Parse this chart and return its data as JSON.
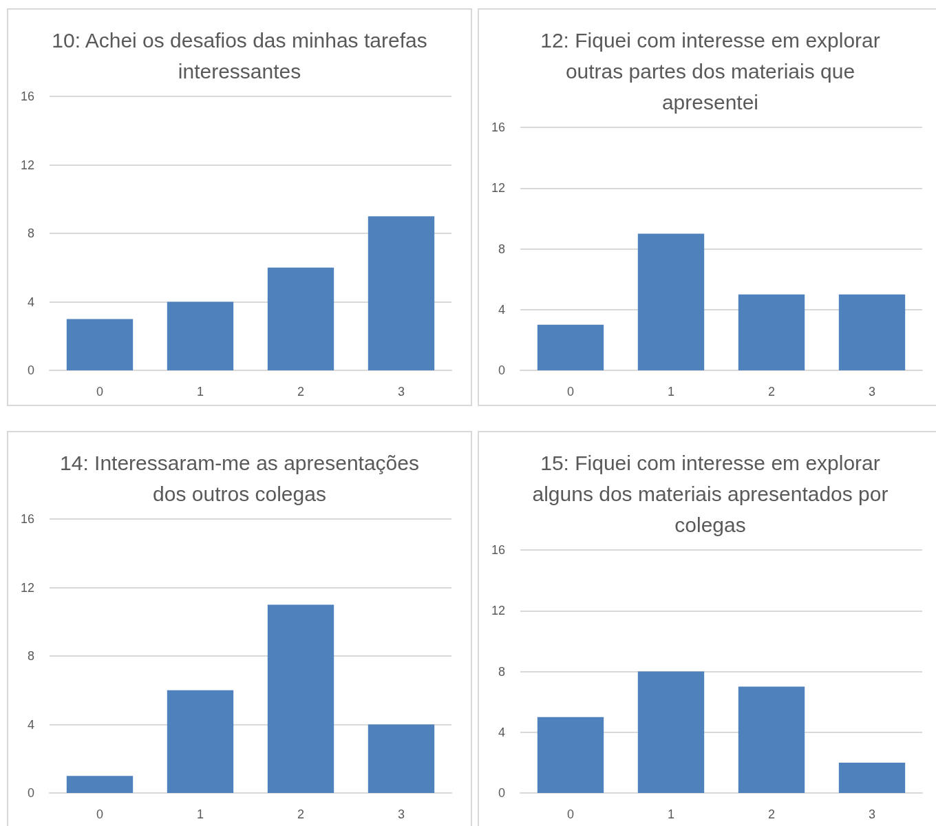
{
  "chart_data": [
    {
      "type": "bar",
      "title": "10: Achei os desafios das minhas tarefas interessantes",
      "categories": [
        "0",
        "1",
        "2",
        "3"
      ],
      "values": [
        3,
        4,
        6,
        9
      ],
      "color": "#4f81bd",
      "ylim": [
        0,
        16
      ],
      "yticks": [
        0,
        4,
        8,
        12,
        16
      ],
      "grid": "y"
    },
    {
      "type": "bar",
      "title": "12: Fiquei com interesse em explorar outras partes dos materiais que apresentei",
      "categories": [
        "0",
        "1",
        "2",
        "3"
      ],
      "values": [
        3,
        9,
        5,
        5
      ],
      "color": "#4f81bd",
      "ylim": [
        0,
        16
      ],
      "yticks": [
        0,
        4,
        8,
        12,
        16
      ],
      "grid": "y"
    },
    {
      "type": "bar",
      "title": "14: Interessaram-me as apresentações dos outros colegas",
      "categories": [
        "0",
        "1",
        "2",
        "3"
      ],
      "values": [
        1,
        6,
        11,
        4
      ],
      "color": "#4f81bd",
      "ylim": [
        0,
        16
      ],
      "yticks": [
        0,
        4,
        8,
        12,
        16
      ],
      "grid": "y"
    },
    {
      "type": "bar",
      "title": "15: Fiquei com interesse em explorar alguns dos materiais apresentados por colegas",
      "categories": [
        "0",
        "1",
        "2",
        "3"
      ],
      "values": [
        5,
        8,
        7,
        2
      ],
      "color": "#4f81bd",
      "ylim": [
        0,
        16
      ],
      "yticks": [
        0,
        4,
        8,
        12,
        16
      ],
      "grid": "y"
    }
  ]
}
